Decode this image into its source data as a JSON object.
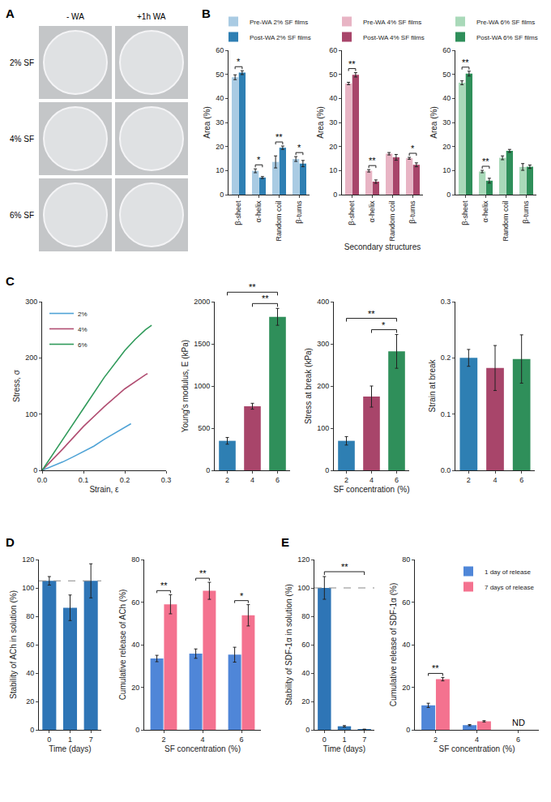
{
  "figure_a": {
    "panel": "A",
    "columns": [
      "- WA",
      "+1h WA"
    ],
    "rows": [
      "2% SF",
      "4% SF",
      "6% SF"
    ]
  },
  "chart_data": [
    {
      "panel": "B",
      "type": "bar",
      "categories": [
        "β-sheet",
        "α-helix",
        "Random coil",
        "β-turns"
      ],
      "series": [
        {
          "name": "Pre-WA 2% SF films",
          "color": "#a9cbe3",
          "values": [
            48.8,
            9.9,
            13.6,
            14.8
          ],
          "errors": [
            1.0,
            0.8,
            2.5,
            1.0
          ]
        },
        {
          "name": "Post-WA 2% SF films",
          "color": "#2e7fb3",
          "values": [
            50.7,
            7.1,
            19.5,
            12.9
          ],
          "errors": [
            0.8,
            0.4,
            0.7,
            1.3
          ]
        }
      ],
      "y_label": "Area (%)",
      "ylim": [
        0,
        60
      ],
      "yticks": [
        0,
        10,
        20,
        30,
        40,
        50,
        60
      ],
      "grid": false,
      "legend": "top",
      "annotations": [
        {
          "category": "β-sheet",
          "text": "*"
        },
        {
          "category": "α-helix",
          "text": "*"
        },
        {
          "category": "Random coil",
          "text": "**"
        },
        {
          "category": "β-turns",
          "text": "*"
        }
      ]
    },
    {
      "type": "bar",
      "categories": [
        "β-sheet",
        "α-helix",
        "Random coil",
        "β-turns"
      ],
      "series": [
        {
          "name": "Pre-WA 4% SF films",
          "color": "#e8b4c4",
          "values": [
            46.2,
            9.9,
            17.0,
            15.1
          ],
          "errors": [
            0.5,
            0.5,
            0.5,
            0.4
          ]
        },
        {
          "name": "Post-WA 4% SF films",
          "color": "#a8456a",
          "values": [
            49.8,
            5.4,
            15.5,
            12.4
          ],
          "errors": [
            0.9,
            0.7,
            1.2,
            0.8
          ]
        }
      ],
      "x_label": "Secondary structures",
      "y_label": "Area (%)",
      "ylim": [
        0,
        60
      ],
      "yticks": [
        0,
        10,
        20,
        30,
        40,
        50,
        60
      ],
      "grid": false,
      "legend": "top",
      "annotations": [
        {
          "category": "β-sheet",
          "text": "**"
        },
        {
          "category": "α-helix",
          "text": "**"
        },
        {
          "category": "β-turns",
          "text": "*"
        }
      ]
    },
    {
      "type": "bar",
      "categories": [
        "β-sheet",
        "α-helix",
        "Random coil",
        "β-turns"
      ],
      "series": [
        {
          "name": "Pre-WA 6% SF films",
          "color": "#a9d9b9",
          "values": [
            46.5,
            9.6,
            15.3,
            11.5
          ],
          "errors": [
            0.8,
            0.5,
            0.8,
            1.4
          ]
        },
        {
          "name": "Post-WA 6% SF films",
          "color": "#2f8f5a",
          "values": [
            50.3,
            5.8,
            18.2,
            11.6
          ],
          "errors": [
            1.0,
            1.0,
            0.6,
            0.7
          ]
        }
      ],
      "y_label": "Area (%)",
      "ylim": [
        0,
        60
      ],
      "yticks": [
        0,
        10,
        20,
        30,
        40,
        50,
        60
      ],
      "grid": false,
      "legend": "top",
      "annotations": [
        {
          "category": "β-sheet",
          "text": "**"
        },
        {
          "category": "α-helix",
          "text": "**"
        }
      ]
    },
    {
      "panel": "C",
      "type": "line",
      "series": [
        {
          "name": "2%",
          "color": "#4fa3d6",
          "x": [
            0,
            0.025,
            0.05,
            0.075,
            0.1,
            0.125,
            0.15,
            0.175,
            0.2,
            0.215
          ],
          "values": [
            0,
            7,
            15,
            24,
            33,
            43,
            55,
            66,
            77,
            83
          ]
        },
        {
          "name": "4%",
          "color": "#b14e72",
          "x": [
            0,
            0.025,
            0.05,
            0.1,
            0.15,
            0.2,
            0.225,
            0.25,
            0.255
          ],
          "values": [
            0,
            19,
            38,
            78,
            113,
            145,
            158,
            170,
            172
          ]
        },
        {
          "name": "6%",
          "color": "#2f9a5a",
          "x": [
            0,
            0.025,
            0.05,
            0.1,
            0.15,
            0.2,
            0.225,
            0.25,
            0.265
          ],
          "values": [
            0,
            27,
            55,
            110,
            165,
            213,
            233,
            250,
            258
          ]
        }
      ],
      "x_label": "Strain, ε",
      "y_label": "Stress, σ",
      "xlim": [
        0,
        0.3
      ],
      "xticks": [
        {
          "value": 0,
          "label": "0.0"
        },
        0.1,
        0.2,
        0.3
      ],
      "ylim": [
        0,
        300
      ],
      "yticks": [
        0,
        100,
        200,
        300
      ],
      "grid": false,
      "legend": "top left"
    },
    {
      "type": "bar",
      "categories": [
        "2",
        "4",
        "6"
      ],
      "values": [
        350,
        760,
        1820
      ],
      "errors": [
        40,
        35,
        100
      ],
      "colors": [
        "#2e7fb3",
        "#a8456a",
        "#2f8f5a"
      ],
      "y_label": "Young's modulus, E (kPa)",
      "ylim": [
        0,
        2000
      ],
      "yticks": [
        0,
        500,
        1000,
        1500,
        2000
      ],
      "grid": false,
      "annotations": [
        {
          "from": "4",
          "to": "6",
          "text": "**"
        },
        {
          "from": "2",
          "to": "6",
          "text": "**"
        }
      ]
    },
    {
      "type": "bar",
      "categories": [
        "2",
        "4",
        "6"
      ],
      "values": [
        70,
        175,
        282
      ],
      "errors": [
        10,
        25,
        40
      ],
      "colors": [
        "#2e7fb3",
        "#a8456a",
        "#2f8f5a"
      ],
      "x_label": "SF concentration (%)",
      "y_label": "Stress at break (kPa)",
      "ylim": [
        0,
        400
      ],
      "yticks": [
        0,
        100,
        200,
        300,
        400
      ],
      "grid": false,
      "annotations": [
        {
          "from": "4",
          "to": "6",
          "text": "*"
        },
        {
          "from": "2",
          "to": "6",
          "text": "**"
        }
      ]
    },
    {
      "type": "bar",
      "categories": [
        "2",
        "4",
        "6"
      ],
      "values": [
        0.2,
        0.182,
        0.198
      ],
      "errors": [
        0.015,
        0.04,
        0.043
      ],
      "colors": [
        "#2e7fb3",
        "#a8456a",
        "#2f8f5a"
      ],
      "y_label": "Strain at break",
      "ylim": [
        0,
        0.3
      ],
      "yticks": [
        {
          "value": 0,
          "label": "0.0"
        },
        0.1,
        0.2,
        0.3
      ],
      "grid": false
    },
    {
      "panel": "D",
      "type": "bar",
      "categories": [
        "0",
        "1",
        "7"
      ],
      "values": [
        105,
        86,
        105
      ],
      "errors": [
        3,
        9,
        12
      ],
      "color": "#2e75b6",
      "x_label": "Time (days)",
      "y_label": "Stability of ACh in solution (%)",
      "ylim": [
        0,
        120
      ],
      "yticks": [
        0,
        20,
        40,
        60,
        80,
        100,
        120
      ],
      "grid": false,
      "reference_line": 105
    },
    {
      "type": "bar",
      "categories": [
        "2",
        "4",
        "6"
      ],
      "series": [
        {
          "name": "1 day of release",
          "color": "#4f86d8",
          "values": [
            33.5,
            35.8,
            35.3
          ],
          "errors": [
            1.5,
            2.2,
            3.5
          ]
        },
        {
          "name": "7 days of release",
          "color": "#f4728f",
          "values": [
            59,
            65.3,
            53.8
          ],
          "errors": [
            4.5,
            4.0,
            5.0
          ]
        }
      ],
      "x_label": "SF concentration (%)",
      "y_label": "Cumulative release of ACh (%)",
      "ylim": [
        0,
        80
      ],
      "yticks": [
        0,
        20,
        40,
        60,
        80
      ],
      "grid": false,
      "annotations": [
        {
          "category": "2",
          "text": "**"
        },
        {
          "category": "4",
          "text": "**"
        },
        {
          "category": "6",
          "text": "*"
        }
      ]
    },
    {
      "panel": "E",
      "type": "bar",
      "categories": [
        "0",
        "1",
        "7"
      ],
      "values": [
        100,
        2.5,
        0.3
      ],
      "errors": [
        8,
        0.5,
        0.2
      ],
      "color": "#2e75b6",
      "x_label": "Time (days)",
      "y_label": "Stability of SDF-1α in solution (%)",
      "ylim": [
        0,
        120
      ],
      "yticks": [
        0,
        20,
        40,
        60,
        80,
        100,
        120
      ],
      "grid": false,
      "reference_line": 100,
      "annotations": [
        {
          "from": "0",
          "to": "7",
          "text": "**"
        }
      ]
    },
    {
      "type": "bar",
      "categories": [
        "2",
        "4",
        "6"
      ],
      "series": [
        {
          "name": "1 day of release",
          "color": "#4f86d8",
          "values": [
            11.5,
            2.2,
            null
          ],
          "errors": [
            1.0,
            0.3,
            null
          ]
        },
        {
          "name": "7 days of release",
          "color": "#f4728f",
          "values": [
            23.8,
            4.0,
            null
          ],
          "errors": [
            0.8,
            0.3,
            null
          ]
        }
      ],
      "x_label": "SF concentration (%)",
      "y_label": "Cumulative release of SDF-1α (%)",
      "ylim": [
        0,
        80
      ],
      "yticks": [
        0,
        20,
        40,
        60,
        80
      ],
      "grid": false,
      "legend": "top right",
      "annotations": [
        {
          "category": "2",
          "text": "**"
        },
        {
          "category": "6",
          "text": "ND"
        }
      ]
    }
  ]
}
